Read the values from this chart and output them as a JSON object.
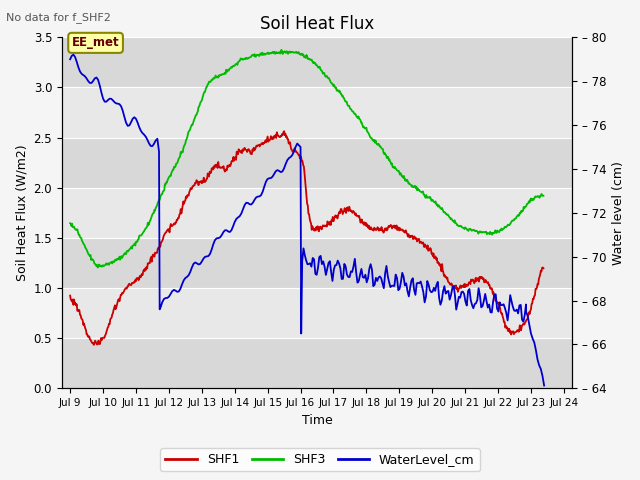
{
  "title": "Soil Heat Flux",
  "no_data_text": "No data for f_SHF2",
  "xlabel": "Time",
  "ylabel_left": "Soil Heat Flux (W/m2)",
  "ylabel_right": "Water level (cm)",
  "ylim_left": [
    0.0,
    3.5
  ],
  "ylim_right": [
    64,
    80
  ],
  "xlim": [
    8.75,
    24.25
  ],
  "xtick_labels": [
    "Jul 9",
    "Jul 10",
    "Jul 11",
    "Jul 12",
    "Jul 13",
    "Jul 14",
    "Jul 15",
    "Jul 16",
    "Jul 17",
    "Jul 18",
    "Jul 19",
    "Jul 20",
    "Jul 21",
    "Jul 22",
    "Jul 23",
    "Jul 24"
  ],
  "xtick_positions": [
    9,
    10,
    11,
    12,
    13,
    14,
    15,
    16,
    17,
    18,
    19,
    20,
    21,
    22,
    23,
    24
  ],
  "yticks_left": [
    0.0,
    0.5,
    1.0,
    1.5,
    2.0,
    2.5,
    3.0,
    3.5
  ],
  "yticks_right": [
    64,
    66,
    68,
    70,
    72,
    74,
    76,
    78,
    80
  ],
  "legend_items": [
    "SHF1",
    "SHF3",
    "WaterLevel_cm"
  ],
  "legend_colors": [
    "#cc0000",
    "#00bb00",
    "#0000cc"
  ],
  "bg_color": "#e8e8e8",
  "plot_bg": "#e8e8e8",
  "grid_color": "#ffffff",
  "annotation_box": {
    "text": "EE_met",
    "facecolor": "#ffffaa",
    "edgecolor": "#888800"
  },
  "fig_facecolor": "#f5f5f5"
}
